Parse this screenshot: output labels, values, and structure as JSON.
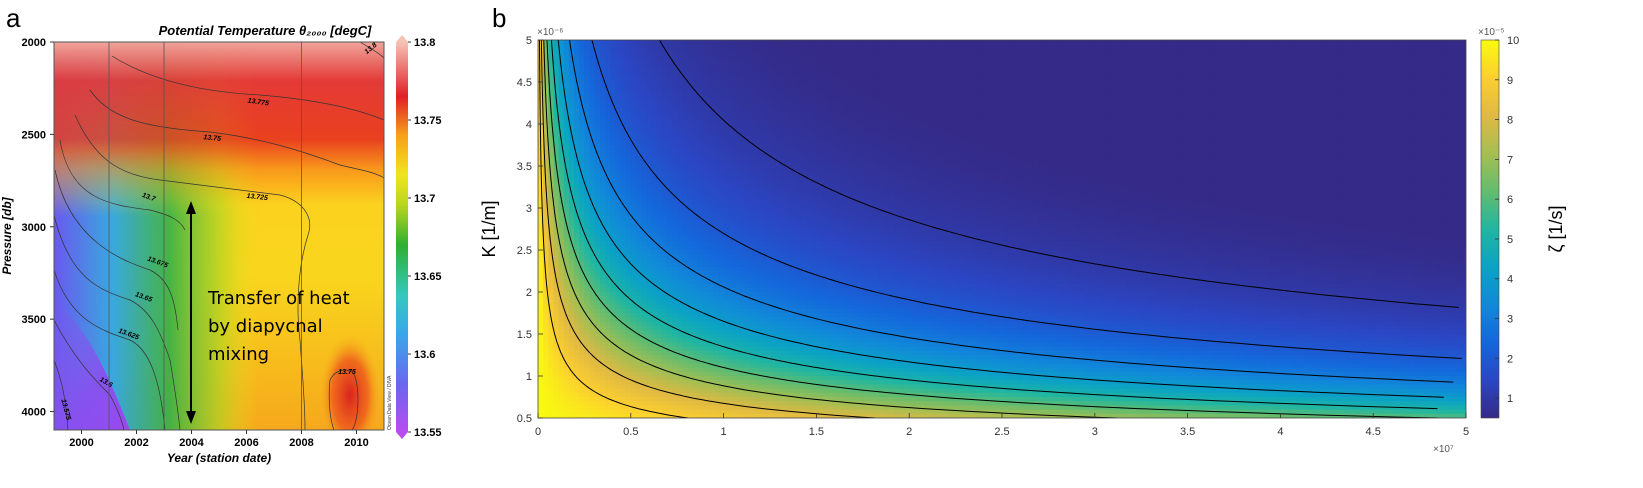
{
  "chart_data": [
    {
      "panel_label": "a",
      "type": "heatmap",
      "title": "Potential Temperature θ₂₀₀₀ [degC]",
      "xlabel": "Year (station date)",
      "ylabel": "Pressure [db]",
      "xlim": [
        1999,
        2011
      ],
      "ylim": [
        2000,
        4100
      ],
      "x_ticks": [
        "2000",
        "2002",
        "2004",
        "2006",
        "2008",
        "2010"
      ],
      "y_ticks": [
        "2000",
        "2500",
        "3000",
        "3500",
        "4000"
      ],
      "colorbar": {
        "ticks": [
          "13.8",
          "13.75",
          "13.7",
          "13.65",
          "13.6",
          "13.55"
        ],
        "range": [
          13.55,
          13.8
        ]
      },
      "station_years": [
        2001,
        2003,
        2008
      ],
      "contour_labels": [
        "13.8",
        "13.775",
        "13.75",
        "13.725",
        "13.7",
        "13.675",
        "13.65",
        "13.625",
        "13.6",
        "13.575",
        "13.75"
      ],
      "annotation": {
        "lines": [
          "Transfer of heat",
          "by diapycnal",
          "mixing"
        ],
        "arrow_from": 2800,
        "arrow_to": 4000,
        "arrow_year": 2004
      },
      "watermark": "Ocean Data View / DIVA"
    },
    {
      "panel_label": "b",
      "type": "heatmap",
      "xlabel": "",
      "ylabel": "K [1/m]",
      "x_multiplier": "×10⁷",
      "y_multiplier": "×10⁻⁶",
      "xlim": [
        0,
        5
      ],
      "ylim": [
        0.5,
        5
      ],
      "x_ticks": [
        "0",
        "0.5",
        "1",
        "1.5",
        "2",
        "2.5",
        "3",
        "3.5",
        "4",
        "4.5",
        "5"
      ],
      "y_ticks": [
        "0.5",
        "1",
        "1.5",
        "2",
        "2.5",
        "3",
        "3.5",
        "4",
        "4.5",
        "5"
      ],
      "colorbar": {
        "label": "ζ [1/s]",
        "multiplier": "×10⁻⁵",
        "ticks": [
          "10",
          "9",
          "8",
          "7",
          "6",
          "5",
          "4",
          "3",
          "2",
          "1"
        ],
        "range": [
          0.5,
          10
        ]
      },
      "contour_levels": [
        1,
        2,
        3,
        4,
        5,
        6,
        7,
        8,
        9
      ]
    }
  ]
}
